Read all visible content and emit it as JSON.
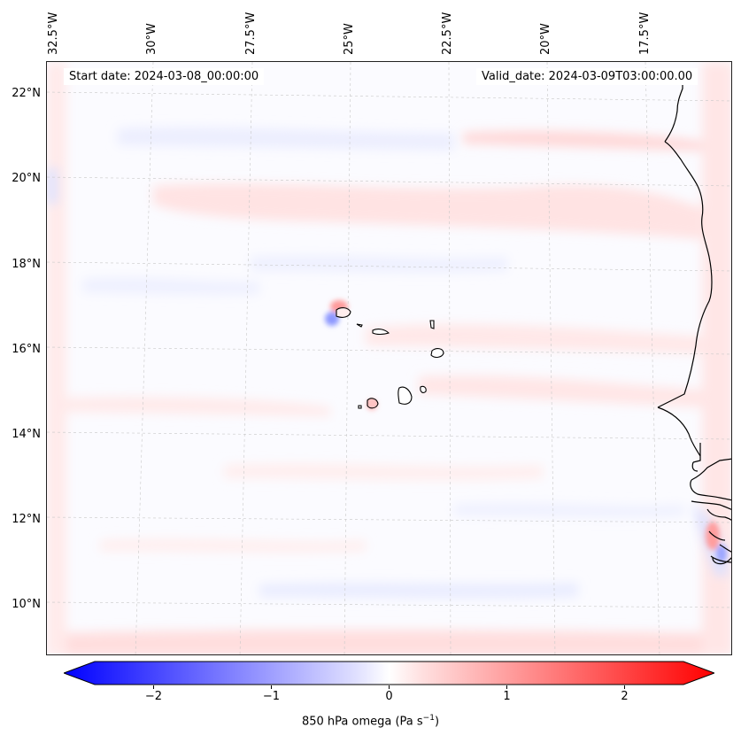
{
  "map": {
    "title_left": "Start date: 2024-03-08_00:00:00",
    "title_right": "Valid_date: 2024-03-09T03:00:00.00",
    "lon_labels": [
      "32.5°W",
      "30°W",
      "27.5°W",
      "25°W",
      "22.5°W",
      "20°W",
      "17.5°W"
    ],
    "lat_labels": [
      "22°N",
      "20°N",
      "18°N",
      "16°N",
      "14°N",
      "12°N",
      "10°N"
    ],
    "field": "850 hPa omega",
    "colors": {
      "negative": "#0000ff",
      "positive": "#ff0000",
      "neutral": "#ffffff",
      "coast": "#000000"
    }
  },
  "colorbar": {
    "label": "850 hPa omega (Pa s",
    "label_sup": "−1",
    "label_close": ")",
    "ticks": [
      "−2",
      "−1",
      "0",
      "1",
      "2"
    ],
    "tick_values": [
      -2,
      -1,
      0,
      1,
      2
    ],
    "range": [
      -2.75,
      2.75
    ]
  }
}
